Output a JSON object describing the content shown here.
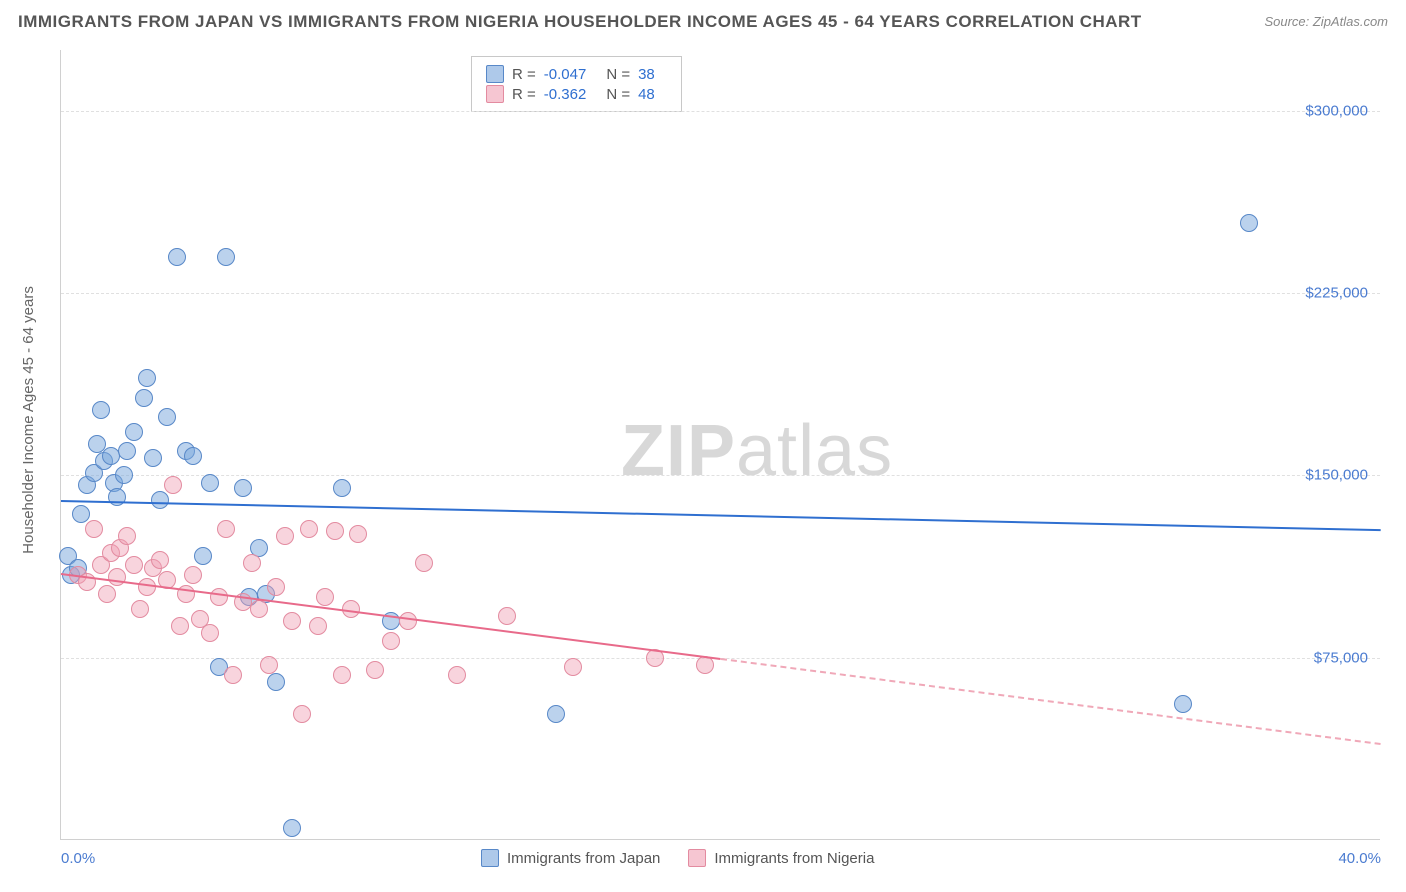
{
  "title": "IMMIGRANTS FROM JAPAN VS IMMIGRANTS FROM NIGERIA HOUSEHOLDER INCOME AGES 45 - 64 YEARS CORRELATION CHART",
  "source": "Source: ZipAtlas.com",
  "watermark_a": "ZIP",
  "watermark_b": "atlas",
  "yaxis_label": "Householder Income Ages 45 - 64 years",
  "chart": {
    "type": "scatter",
    "xlim": [
      0,
      40
    ],
    "ylim": [
      0,
      325000
    ],
    "xticks": [
      {
        "v": 0,
        "label": "0.0%"
      },
      {
        "v": 40,
        "label": "40.0%"
      }
    ],
    "yticks": [
      {
        "v": 75000,
        "label": "$75,000"
      },
      {
        "v": 150000,
        "label": "$150,000"
      },
      {
        "v": 225000,
        "label": "$225,000"
      },
      {
        "v": 300000,
        "label": "$300,000"
      }
    ],
    "grid_color": "#e0e0e0",
    "background_color": "#ffffff",
    "series": [
      {
        "name": "Immigrants from Japan",
        "color_fill": "rgba(120,165,220,0.5)",
        "color_border": "#5888c8",
        "trend_color": "#2f6fd0",
        "R": "-0.047",
        "N": "38",
        "trend": {
          "x1": 0,
          "y1": 140000,
          "x2": 40,
          "y2": 128000
        },
        "points": [
          [
            0.2,
            117000
          ],
          [
            0.3,
            109000
          ],
          [
            0.5,
            112000
          ],
          [
            0.6,
            134000
          ],
          [
            0.8,
            146000
          ],
          [
            1.0,
            151000
          ],
          [
            1.2,
            177000
          ],
          [
            1.3,
            156000
          ],
          [
            1.5,
            158000
          ],
          [
            1.6,
            147000
          ],
          [
            1.7,
            141000
          ],
          [
            2.0,
            160000
          ],
          [
            2.2,
            168000
          ],
          [
            2.5,
            182000
          ],
          [
            2.6,
            190000
          ],
          [
            2.8,
            157000
          ],
          [
            3.0,
            140000
          ],
          [
            3.2,
            174000
          ],
          [
            3.5,
            240000
          ],
          [
            3.8,
            160000
          ],
          [
            4.0,
            158000
          ],
          [
            4.3,
            117000
          ],
          [
            4.5,
            147000
          ],
          [
            4.8,
            71000
          ],
          [
            5.0,
            240000
          ],
          [
            5.5,
            145000
          ],
          [
            5.7,
            100000
          ],
          [
            6.0,
            120000
          ],
          [
            6.2,
            101000
          ],
          [
            6.5,
            65000
          ],
          [
            7.0,
            5000
          ],
          [
            8.5,
            145000
          ],
          [
            10.0,
            90000
          ],
          [
            15.0,
            52000
          ],
          [
            34.0,
            56000
          ],
          [
            36.0,
            254000
          ],
          [
            1.9,
            150000
          ],
          [
            1.1,
            163000
          ]
        ]
      },
      {
        "name": "Immigrants from Nigeria",
        "color_fill": "rgba(240,160,180,0.45)",
        "color_border": "#e38ba0",
        "trend_color": "#e86a8a",
        "R": "-0.362",
        "N": "48",
        "trend": {
          "x1": 0,
          "y1": 110000,
          "x2": 20,
          "y2": 75000,
          "ext_x2": 40,
          "ext_y2": 40000
        },
        "points": [
          [
            0.5,
            109000
          ],
          [
            0.8,
            106000
          ],
          [
            1.0,
            128000
          ],
          [
            1.2,
            113000
          ],
          [
            1.4,
            101000
          ],
          [
            1.5,
            118000
          ],
          [
            1.7,
            108000
          ],
          [
            1.8,
            120000
          ],
          [
            2.0,
            125000
          ],
          [
            2.2,
            113000
          ],
          [
            2.4,
            95000
          ],
          [
            2.6,
            104000
          ],
          [
            2.8,
            112000
          ],
          [
            3.0,
            115000
          ],
          [
            3.2,
            107000
          ],
          [
            3.4,
            146000
          ],
          [
            3.6,
            88000
          ],
          [
            3.8,
            101000
          ],
          [
            4.0,
            109000
          ],
          [
            4.2,
            91000
          ],
          [
            4.5,
            85000
          ],
          [
            4.8,
            100000
          ],
          [
            5.0,
            128000
          ],
          [
            5.2,
            68000
          ],
          [
            5.5,
            98000
          ],
          [
            5.8,
            114000
          ],
          [
            6.0,
            95000
          ],
          [
            6.3,
            72000
          ],
          [
            6.5,
            104000
          ],
          [
            6.8,
            125000
          ],
          [
            7.0,
            90000
          ],
          [
            7.3,
            52000
          ],
          [
            7.5,
            128000
          ],
          [
            7.8,
            88000
          ],
          [
            8.0,
            100000
          ],
          [
            8.3,
            127000
          ],
          [
            8.5,
            68000
          ],
          [
            8.8,
            95000
          ],
          [
            9.0,
            126000
          ],
          [
            9.5,
            70000
          ],
          [
            10.0,
            82000
          ],
          [
            10.5,
            90000
          ],
          [
            11.0,
            114000
          ],
          [
            12.0,
            68000
          ],
          [
            13.5,
            92000
          ],
          [
            15.5,
            71000
          ],
          [
            18.0,
            75000
          ],
          [
            19.5,
            72000
          ]
        ]
      }
    ]
  },
  "legend_top": {
    "r_label": "R =",
    "n_label": "N ="
  },
  "legend_bottom": {
    "series1": "Immigrants from Japan",
    "series2": "Immigrants from Nigeria"
  }
}
